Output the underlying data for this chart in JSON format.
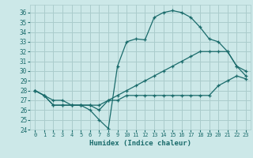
{
  "xlabel": "Humidex (Indice chaleur)",
  "xlim": [
    -0.5,
    23.5
  ],
  "ylim": [
    24,
    36.8
  ],
  "yticks": [
    24,
    25,
    26,
    27,
    28,
    29,
    30,
    31,
    32,
    33,
    34,
    35,
    36
  ],
  "xticks": [
    0,
    1,
    2,
    3,
    4,
    5,
    6,
    7,
    8,
    9,
    10,
    11,
    12,
    13,
    14,
    15,
    16,
    17,
    18,
    19,
    20,
    21,
    22,
    23
  ],
  "bg_color": "#cce8e8",
  "grid_color": "#aacccc",
  "line_color": "#1a6b6b",
  "lines": [
    {
      "x": [
        0,
        1,
        2,
        3,
        4,
        5,
        6,
        7,
        8,
        9,
        10,
        11,
        12,
        13,
        14,
        15,
        16,
        17,
        18,
        19,
        20,
        21,
        22,
        23
      ],
      "y": [
        28,
        27.5,
        26.5,
        26.5,
        26.5,
        26.5,
        26.5,
        26,
        27,
        27,
        27.5,
        27.5,
        27.5,
        27.5,
        27.5,
        27.5,
        27.5,
        27.5,
        27.5,
        27.5,
        28.5,
        29,
        29.5,
        29.2
      ],
      "marker": "+"
    },
    {
      "x": [
        0,
        1,
        2,
        3,
        4,
        5,
        6,
        7,
        8,
        9,
        10,
        11,
        12,
        13,
        14,
        15,
        16,
        17,
        18,
        19,
        20,
        21,
        22,
        23
      ],
      "y": [
        28,
        27.5,
        27,
        27,
        26.5,
        26.5,
        26.5,
        26.5,
        27,
        27.5,
        28,
        28.5,
        29,
        29.5,
        30,
        30.5,
        31,
        31.5,
        32,
        32,
        32,
        32,
        30.5,
        29.5
      ],
      "marker": "+"
    },
    {
      "x": [
        0,
        1,
        2,
        3,
        4,
        5,
        6,
        7,
        8,
        9,
        10,
        11,
        12,
        13,
        14,
        15,
        16,
        17,
        18,
        19,
        20,
        21,
        22,
        23
      ],
      "y": [
        28,
        27.5,
        26.5,
        26.5,
        26.5,
        26.5,
        26,
        25,
        24.1,
        30.5,
        33,
        33.3,
        33.2,
        35.5,
        36,
        36.2,
        36,
        35.5,
        34.5,
        33.3,
        33,
        32,
        30.5,
        30
      ],
      "marker": "+"
    }
  ]
}
